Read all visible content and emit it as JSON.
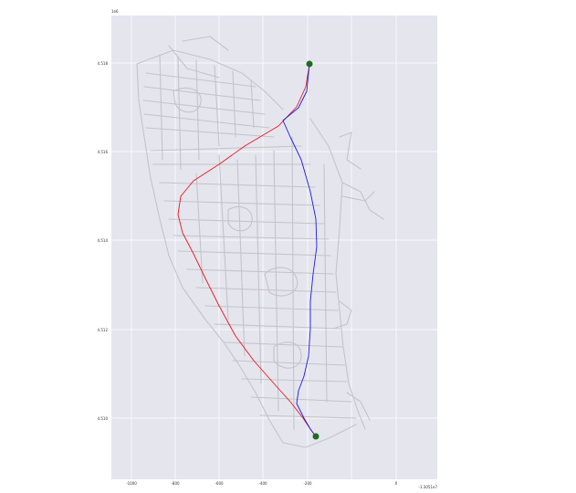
{
  "map": {
    "y_offset_label": "1e6",
    "x_offset_label": "-1.3051e7",
    "x_tick_labels": [
      "-1000",
      "-800",
      "-600",
      "-400",
      "-200",
      "0"
    ],
    "y_tick_labels": [
      "4.518",
      "4.516",
      "4.514",
      "4.512",
      "4.510"
    ],
    "colors": {
      "background": "#e5e5ee",
      "grid": "#ffffff",
      "streets": "#c4c4c8",
      "route_red": "#e41a1c",
      "route_blue": "#1a1ae6",
      "endpoints": "#1f6b1f"
    },
    "legend": "none",
    "grid": true
  }
}
